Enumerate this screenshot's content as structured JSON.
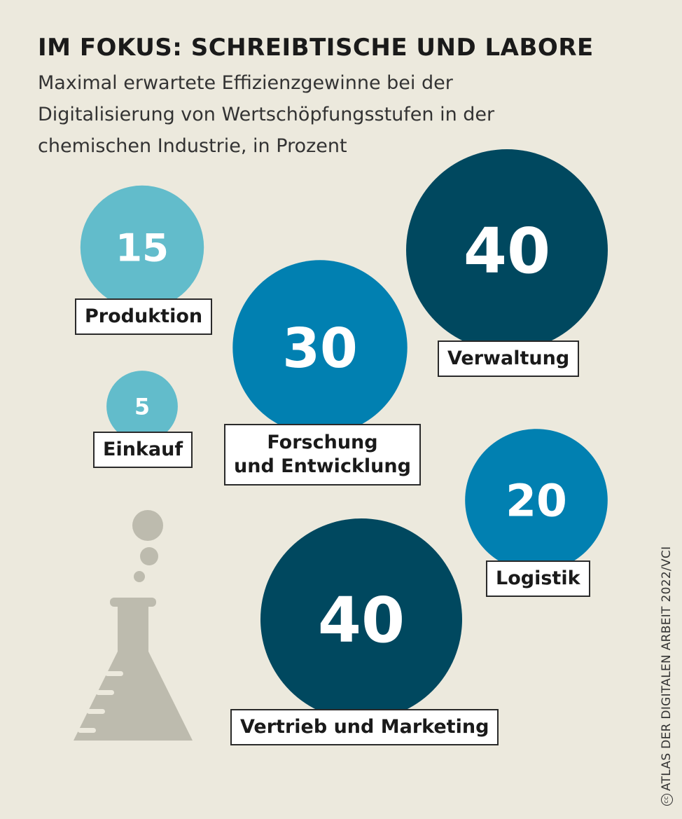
{
  "header": {
    "title": "IM FOKUS: SCHREIBTISCHE UND LABORE",
    "subtitle_lines": [
      "Maximal erwartete Effizienzgewinne bei der",
      "Digitalisierung von Wertschöpfungsstufen in der",
      "chemischen Industrie, in Prozent"
    ]
  },
  "chart_data": {
    "type": "bubble",
    "title": "IM FOKUS: SCHREIBTISCHE UND LABORE",
    "unit": "Prozent",
    "categories": [
      "Produktion",
      "Einkauf",
      "Forschung und Entwicklung",
      "Verwaltung",
      "Logistik",
      "Vertrieb und Marketing"
    ],
    "values": [
      15,
      5,
      30,
      40,
      20,
      40
    ],
    "items": [
      {
        "id": "produktion",
        "value": 15,
        "label_lines": [
          "Produktion"
        ],
        "color": "#62bccb"
      },
      {
        "id": "einkauf",
        "value": 5,
        "label_lines": [
          "Einkauf"
        ],
        "color": "#62bccb"
      },
      {
        "id": "forschung",
        "value": 30,
        "label_lines": [
          "Forschung",
          "und Entwicklung"
        ],
        "color": "#0180b1"
      },
      {
        "id": "verwaltung",
        "value": 40,
        "label_lines": [
          "Verwaltung"
        ],
        "color": "#00485f"
      },
      {
        "id": "logistik",
        "value": 20,
        "label_lines": [
          "Logistik"
        ],
        "color": "#0180b1"
      },
      {
        "id": "vertrieb",
        "value": 40,
        "label_lines": [
          "Vertrieb und Marketing"
        ],
        "color": "#00485f"
      }
    ]
  },
  "decoration": {
    "flask_icon": "lab-flask-icon",
    "flask_color": "#bdbbae"
  },
  "footer": {
    "credit": "ATLAS DER DIGITALEN ARBEIT 2022/VCI",
    "license_icon": "creative-commons-icon"
  }
}
